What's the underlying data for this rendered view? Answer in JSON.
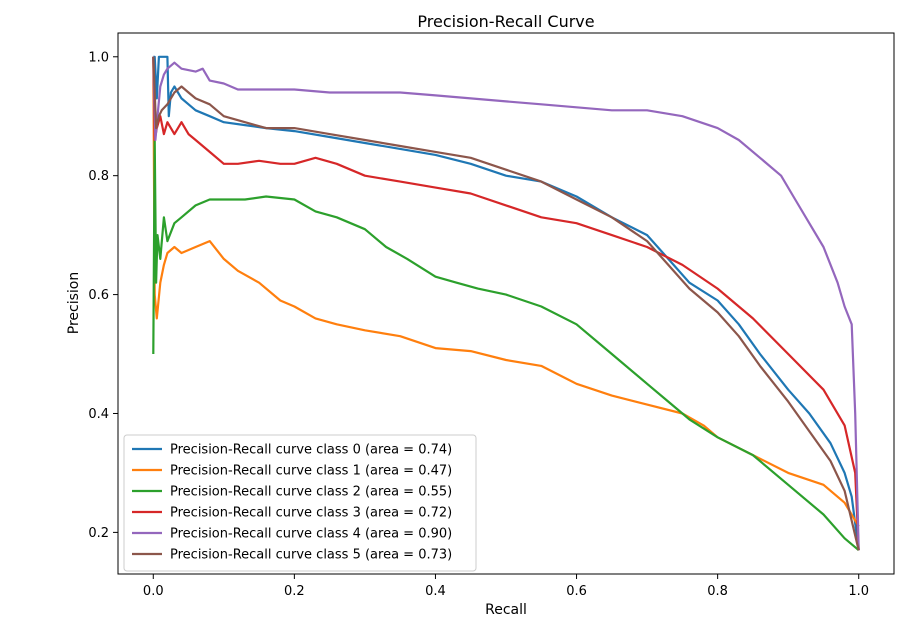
{
  "chart_data": {
    "type": "line",
    "title": "Precision-Recall Curve",
    "xlabel": "Recall",
    "ylabel": "Precision",
    "xlim": [
      -0.05,
      1.05
    ],
    "ylim": [
      0.13,
      1.04
    ],
    "xticks": [
      0.0,
      0.2,
      0.4,
      0.6,
      0.8,
      1.0
    ],
    "xtick_labels": [
      "0.0",
      "0.2",
      "0.4",
      "0.6",
      "0.8",
      "1.0"
    ],
    "yticks": [
      0.2,
      0.4,
      0.6,
      0.8,
      1.0
    ],
    "ytick_labels": [
      "0.2",
      "0.4",
      "0.6",
      "0.8",
      "1.0"
    ],
    "grid": false,
    "legend_position": "lower-left",
    "series": [
      {
        "name": "Precision-Recall curve class 0 (area = 0.74)",
        "color": "#1f77b4",
        "x": [
          0.0,
          0.002,
          0.005,
          0.008,
          0.012,
          0.02,
          0.022,
          0.025,
          0.03,
          0.04,
          0.05,
          0.06,
          0.08,
          0.1,
          0.13,
          0.16,
          0.2,
          0.25,
          0.3,
          0.35,
          0.4,
          0.45,
          0.5,
          0.55,
          0.6,
          0.65,
          0.7,
          0.73,
          0.76,
          0.8,
          0.83,
          0.86,
          0.9,
          0.93,
          0.96,
          0.98,
          0.99,
          1.0
        ],
        "y": [
          1.0,
          1.0,
          0.93,
          1.0,
          1.0,
          1.0,
          0.9,
          0.94,
          0.95,
          0.93,
          0.92,
          0.91,
          0.9,
          0.89,
          0.885,
          0.88,
          0.875,
          0.865,
          0.855,
          0.845,
          0.835,
          0.82,
          0.8,
          0.79,
          0.765,
          0.73,
          0.7,
          0.66,
          0.62,
          0.59,
          0.55,
          0.5,
          0.44,
          0.4,
          0.35,
          0.3,
          0.26,
          0.17
        ]
      },
      {
        "name": "Precision-Recall curve class 1 (area = 0.47)",
        "color": "#ff7f0e",
        "x": [
          0.0,
          0.002,
          0.005,
          0.01,
          0.015,
          0.02,
          0.03,
          0.04,
          0.06,
          0.08,
          0.1,
          0.12,
          0.15,
          0.18,
          0.2,
          0.23,
          0.26,
          0.3,
          0.35,
          0.4,
          0.45,
          0.5,
          0.55,
          0.6,
          0.65,
          0.7,
          0.75,
          0.78,
          0.8,
          0.85,
          0.9,
          0.95,
          0.98,
          1.0
        ],
        "y": [
          1.0,
          0.6,
          0.56,
          0.62,
          0.65,
          0.67,
          0.68,
          0.67,
          0.68,
          0.69,
          0.66,
          0.64,
          0.62,
          0.59,
          0.58,
          0.56,
          0.55,
          0.54,
          0.53,
          0.51,
          0.505,
          0.49,
          0.48,
          0.45,
          0.43,
          0.415,
          0.4,
          0.38,
          0.36,
          0.33,
          0.3,
          0.28,
          0.25,
          0.21
        ]
      },
      {
        "name": "Precision-Recall curve class 2 (area = 0.55)",
        "color": "#2ca02c",
        "x": [
          0.0,
          0.002,
          0.004,
          0.006,
          0.01,
          0.015,
          0.02,
          0.03,
          0.04,
          0.06,
          0.08,
          0.1,
          0.13,
          0.16,
          0.2,
          0.23,
          0.26,
          0.3,
          0.33,
          0.36,
          0.4,
          0.43,
          0.46,
          0.5,
          0.55,
          0.6,
          0.65,
          0.7,
          0.73,
          0.76,
          0.8,
          0.85,
          0.9,
          0.95,
          0.98,
          1.0
        ],
        "y": [
          0.5,
          0.86,
          0.62,
          0.7,
          0.66,
          0.73,
          0.69,
          0.72,
          0.73,
          0.75,
          0.76,
          0.76,
          0.76,
          0.765,
          0.76,
          0.74,
          0.73,
          0.71,
          0.68,
          0.66,
          0.63,
          0.62,
          0.61,
          0.6,
          0.58,
          0.55,
          0.5,
          0.45,
          0.42,
          0.39,
          0.36,
          0.33,
          0.28,
          0.23,
          0.19,
          0.17
        ]
      },
      {
        "name": "Precision-Recall curve class 3 (area = 0.72)",
        "color": "#d62728",
        "x": [
          0.0,
          0.002,
          0.005,
          0.01,
          0.015,
          0.02,
          0.03,
          0.04,
          0.05,
          0.06,
          0.08,
          0.1,
          0.12,
          0.15,
          0.18,
          0.2,
          0.23,
          0.26,
          0.3,
          0.35,
          0.4,
          0.45,
          0.5,
          0.55,
          0.6,
          0.65,
          0.7,
          0.75,
          0.8,
          0.85,
          0.9,
          0.95,
          0.98,
          0.995,
          1.0
        ],
        "y": [
          1.0,
          0.86,
          0.88,
          0.9,
          0.87,
          0.89,
          0.87,
          0.89,
          0.87,
          0.86,
          0.84,
          0.82,
          0.82,
          0.825,
          0.82,
          0.82,
          0.83,
          0.82,
          0.8,
          0.79,
          0.78,
          0.77,
          0.75,
          0.73,
          0.72,
          0.7,
          0.68,
          0.65,
          0.61,
          0.56,
          0.5,
          0.44,
          0.38,
          0.3,
          0.17
        ]
      },
      {
        "name": "Precision-Recall curve class 4 (area = 0.90)",
        "color": "#9467bd",
        "x": [
          0.0,
          0.003,
          0.006,
          0.01,
          0.015,
          0.02,
          0.03,
          0.04,
          0.06,
          0.07,
          0.08,
          0.1,
          0.12,
          0.15,
          0.2,
          0.25,
          0.3,
          0.35,
          0.4,
          0.45,
          0.5,
          0.55,
          0.6,
          0.65,
          0.7,
          0.75,
          0.8,
          0.83,
          0.86,
          0.89,
          0.91,
          0.93,
          0.95,
          0.97,
          0.98,
          0.99,
          0.995,
          1.0
        ],
        "y": [
          1.0,
          0.86,
          0.9,
          0.95,
          0.97,
          0.98,
          0.99,
          0.98,
          0.975,
          0.98,
          0.96,
          0.955,
          0.945,
          0.945,
          0.945,
          0.94,
          0.94,
          0.94,
          0.935,
          0.93,
          0.925,
          0.92,
          0.915,
          0.91,
          0.91,
          0.9,
          0.88,
          0.86,
          0.83,
          0.8,
          0.76,
          0.72,
          0.68,
          0.62,
          0.58,
          0.55,
          0.4,
          0.17
        ]
      },
      {
        "name": "Precision-Recall curve class 5 (area = 0.73)",
        "color": "#8c564b",
        "x": [
          0.0,
          0.004,
          0.008,
          0.012,
          0.02,
          0.03,
          0.04,
          0.05,
          0.06,
          0.08,
          0.1,
          0.13,
          0.16,
          0.2,
          0.25,
          0.3,
          0.35,
          0.4,
          0.45,
          0.5,
          0.55,
          0.6,
          0.65,
          0.7,
          0.73,
          0.76,
          0.8,
          0.83,
          0.86,
          0.9,
          0.93,
          0.96,
          0.98,
          1.0
        ],
        "y": [
          1.0,
          0.88,
          0.9,
          0.91,
          0.92,
          0.94,
          0.95,
          0.94,
          0.93,
          0.92,
          0.9,
          0.89,
          0.88,
          0.88,
          0.87,
          0.86,
          0.85,
          0.84,
          0.83,
          0.81,
          0.79,
          0.76,
          0.73,
          0.69,
          0.65,
          0.61,
          0.57,
          0.53,
          0.48,
          0.42,
          0.37,
          0.32,
          0.27,
          0.17
        ]
      }
    ]
  }
}
